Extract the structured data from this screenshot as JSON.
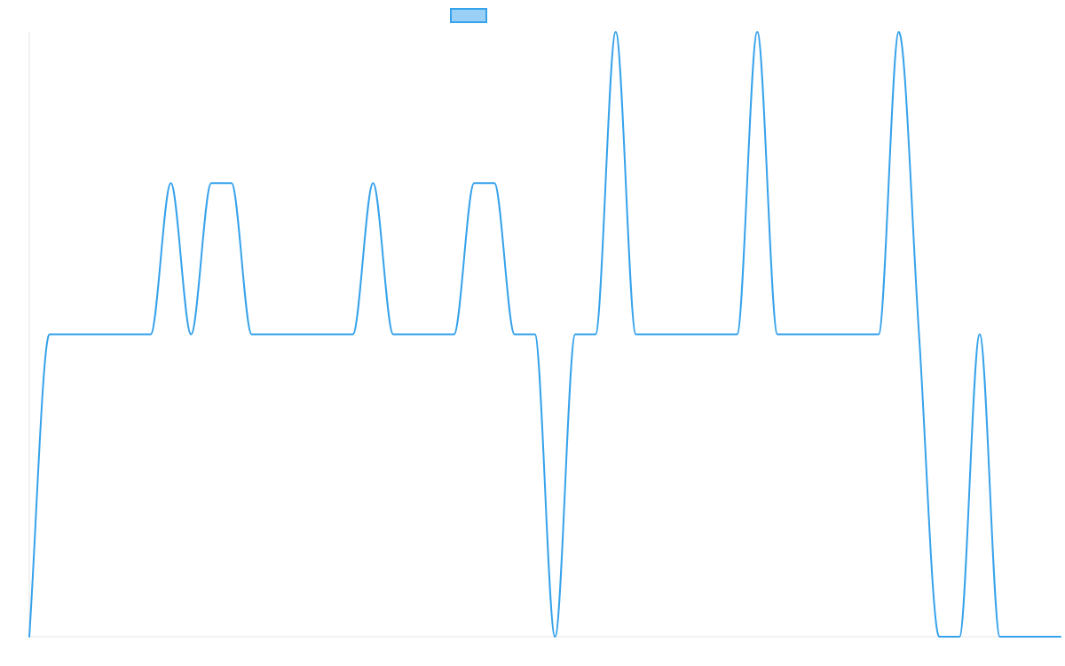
{
  "chart_data": {
    "type": "line",
    "title": "",
    "xlabel": "",
    "ylabel": "",
    "x": [
      0,
      1,
      2,
      3,
      4,
      5,
      6,
      7,
      8,
      9,
      10,
      11,
      12,
      13,
      14,
      15,
      16,
      17,
      18,
      19,
      20,
      21,
      22,
      23,
      24,
      25,
      26,
      27,
      28,
      29,
      30,
      31,
      32,
      33,
      34,
      35,
      36,
      37,
      38,
      39,
      40,
      41,
      42,
      43,
      44,
      45,
      46,
      47,
      48,
      49,
      50,
      51
    ],
    "series": [
      {
        "name": "",
        "color": "#36a2eb",
        "fill": "#9ad0f5",
        "values": [
          0,
          1,
          1,
          1,
          1,
          1,
          1,
          1.5,
          1,
          1.5,
          1.5,
          1,
          1,
          1,
          1,
          1,
          1,
          1.5,
          1,
          1,
          1,
          1,
          1.5,
          1.5,
          1,
          1,
          0,
          1,
          1,
          2,
          1,
          1,
          1,
          1,
          1,
          1,
          2,
          1,
          1,
          1,
          1,
          1,
          1,
          2,
          1,
          0,
          0,
          1,
          0,
          0,
          0,
          0
        ]
      }
    ],
    "xlim": [
      0,
      51
    ],
    "ylim": [
      0,
      2
    ],
    "grid": false,
    "legend": "top"
  }
}
